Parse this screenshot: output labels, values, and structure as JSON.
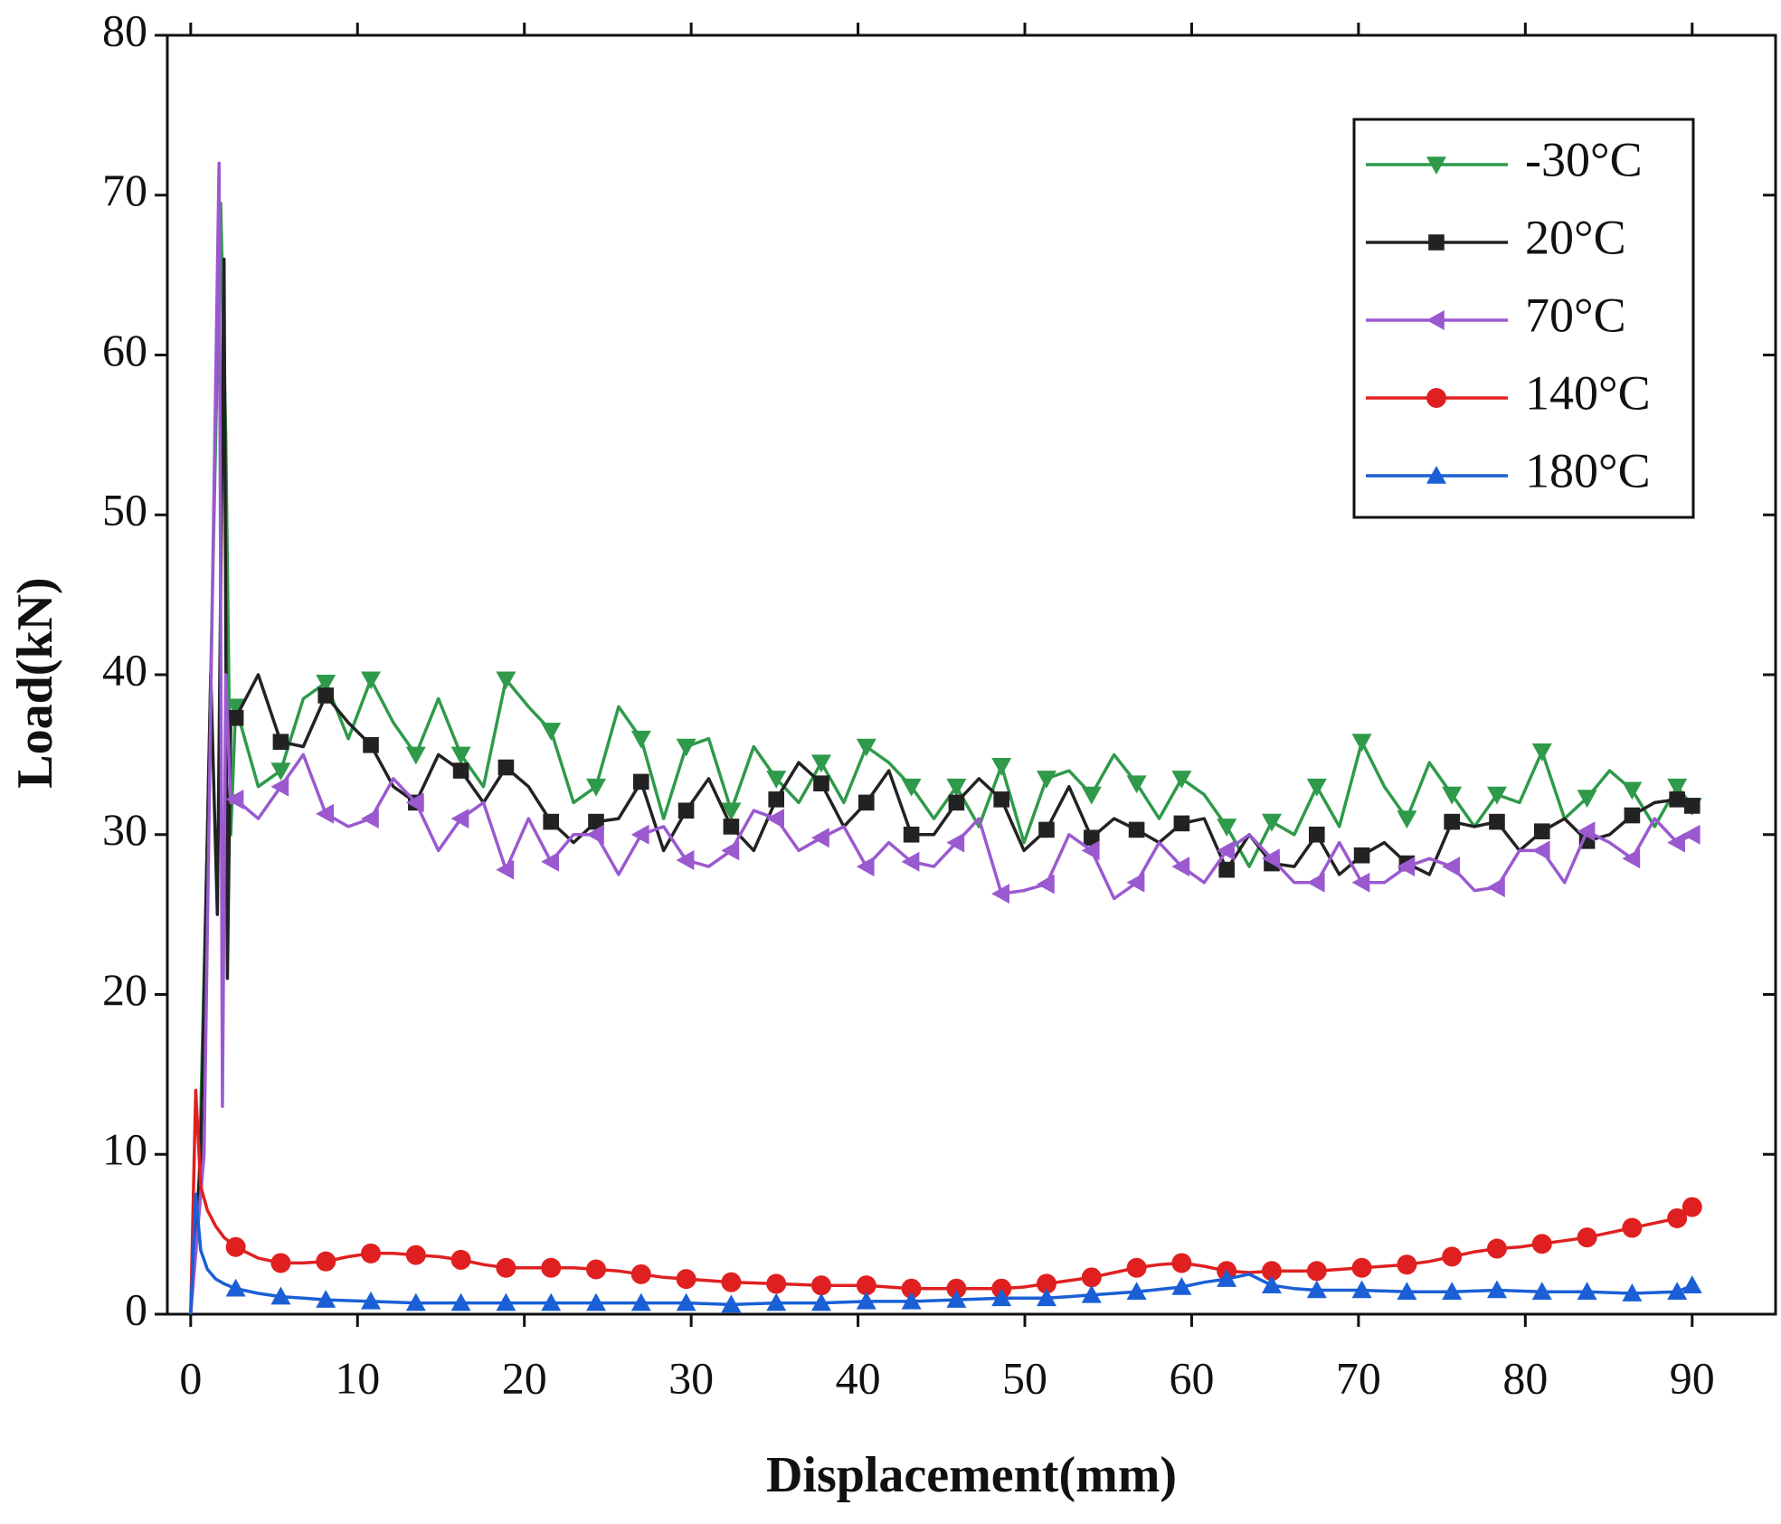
{
  "chart_data": {
    "type": "line",
    "x_label": "Displacement(mm)",
    "y_label": "Load(kN)",
    "xlim": [
      -1.4,
      95
    ],
    "ylim": [
      0,
      80
    ],
    "xticks": [
      0,
      10,
      20,
      30,
      40,
      50,
      60,
      70,
      80,
      90
    ],
    "yticks": [
      0,
      10,
      20,
      30,
      40,
      50,
      60,
      70,
      80
    ],
    "legend": "upper right",
    "series": [
      {
        "name": "-30°C",
        "color": "#2e9a4a",
        "marker": "triangle-down",
        "x": [
          0,
          0.5,
          1.0,
          1.5,
          1.8,
          2.1,
          2.4,
          2.7,
          4.05,
          5.4,
          6.75,
          8.1,
          9.45,
          10.8,
          12.15,
          13.5,
          14.85,
          16.2,
          17.55,
          18.9,
          20.25,
          21.6,
          22.95,
          24.3,
          25.65,
          27,
          28.35,
          29.7,
          31.05,
          32.4,
          33.75,
          35.1,
          36.45,
          37.8,
          39.15,
          40.5,
          41.85,
          43.2,
          44.55,
          45.9,
          47.25,
          48.6,
          49.95,
          51.3,
          52.65,
          54,
          55.35,
          56.7,
          58.05,
          59.4,
          60.75,
          62.1,
          63.45,
          64.8,
          66.15,
          67.5,
          68.85,
          70.2,
          71.55,
          72.9,
          74.25,
          75.6,
          76.95,
          78.3,
          79.65,
          81,
          82.35,
          83.7,
          85.05,
          86.4,
          87.75,
          89.1,
          90
        ],
        "values": [
          0,
          8,
          30,
          55,
          69.5,
          55,
          30,
          38,
          33,
          34,
          38.5,
          39.5,
          36,
          39.7,
          37,
          35,
          38.5,
          35,
          33,
          39.7,
          38,
          36.5,
          32,
          33,
          38,
          36,
          31,
          35.5,
          36,
          31.5,
          35.5,
          33.5,
          32,
          34.5,
          32,
          35.5,
          34.5,
          33,
          31,
          33,
          30.5,
          34.3,
          29.5,
          33.5,
          34,
          32.5,
          35,
          33.2,
          31,
          33.5,
          32.5,
          30.5,
          28,
          30.8,
          30,
          33,
          30.5,
          35.8,
          33,
          31,
          34.5,
          32.5,
          30.5,
          32.5,
          32,
          35.2,
          31,
          32.3,
          34,
          32.8,
          30.5,
          33,
          31.8
        ]
      },
      {
        "name": "20°C",
        "color": "#222222",
        "marker": "square",
        "x": [
          0,
          0.6,
          1.2,
          1.6,
          2.0,
          2.2,
          2.4,
          2.7,
          4.05,
          5.4,
          6.75,
          8.1,
          9.45,
          10.8,
          12.15,
          13.5,
          14.85,
          16.2,
          17.55,
          18.9,
          20.25,
          21.6,
          22.95,
          24.3,
          25.65,
          27,
          28.35,
          29.7,
          31.05,
          32.4,
          33.75,
          35.1,
          36.45,
          37.8,
          39.15,
          40.5,
          41.85,
          43.2,
          44.55,
          45.9,
          47.25,
          48.6,
          49.95,
          51.3,
          52.65,
          54,
          55.35,
          56.7,
          58.05,
          59.4,
          60.75,
          62.1,
          63.45,
          64.8,
          66.15,
          67.5,
          68.85,
          70.2,
          71.55,
          72.9,
          74.25,
          75.6,
          76.95,
          78.3,
          79.65,
          81,
          82.35,
          83.7,
          85.05,
          86.4,
          87.75,
          89.1,
          90
        ],
        "values": [
          0,
          10,
          40,
          25,
          66,
          21,
          37,
          37.3,
          40,
          35.8,
          35.5,
          38.7,
          37,
          35.6,
          33,
          32,
          35,
          34,
          32,
          34.2,
          33,
          30.8,
          29.5,
          30.8,
          31,
          33.3,
          29,
          31.5,
          33.5,
          30.5,
          29,
          32.2,
          34.5,
          33.2,
          30.5,
          32,
          34,
          30,
          30,
          32,
          33.5,
          32.2,
          29,
          30.3,
          33,
          29.8,
          31,
          30.3,
          29.5,
          30.7,
          31,
          27.8,
          30,
          28.2,
          28,
          30,
          27.5,
          28.7,
          29.5,
          28.2,
          27.5,
          30.8,
          30.5,
          30.8,
          29,
          30.2,
          31,
          29.6,
          30,
          31.2,
          32,
          32.2,
          31.8
        ]
      },
      {
        "name": "70°C",
        "color": "#9b59d0",
        "marker": "triangle-left",
        "x": [
          0,
          0.8,
          1.3,
          1.7,
          1.9,
          2.1,
          2.4,
          2.7,
          4.05,
          5.4,
          6.75,
          8.1,
          9.45,
          10.8,
          12.15,
          13.5,
          14.85,
          16.2,
          17.55,
          18.9,
          20.25,
          21.6,
          22.95,
          24.3,
          25.65,
          27,
          28.35,
          29.7,
          31.05,
          32.4,
          33.75,
          35.1,
          36.45,
          37.8,
          39.15,
          40.5,
          41.85,
          43.2,
          44.55,
          45.9,
          47.25,
          48.6,
          49.95,
          51.3,
          52.65,
          54,
          55.35,
          56.7,
          58.05,
          59.4,
          60.75,
          62.1,
          63.45,
          64.8,
          66.15,
          67.5,
          68.85,
          70.2,
          71.55,
          72.9,
          74.25,
          75.6,
          76.95,
          78.3,
          79.65,
          81,
          82.35,
          83.7,
          85.05,
          86.4,
          87.75,
          89.1,
          90
        ],
        "values": [
          0,
          10,
          45,
          72,
          13,
          40,
          32,
          32.2,
          31,
          33,
          35,
          31.3,
          30.5,
          31,
          33.5,
          32,
          29,
          31,
          32,
          27.8,
          31,
          28.3,
          30,
          30,
          27.5,
          30,
          30.5,
          28.4,
          28,
          29,
          31.5,
          31,
          29,
          29.8,
          30.5,
          28,
          29.5,
          28.3,
          28,
          29.5,
          31,
          26.3,
          26.5,
          26.9,
          30,
          29,
          26,
          27,
          29.5,
          28,
          27,
          29,
          30,
          28.5,
          27,
          27,
          29.5,
          27,
          27,
          28,
          28.5,
          28,
          26.5,
          26.7,
          29,
          29,
          27,
          30.2,
          29.5,
          28.5,
          31,
          29.5,
          30
        ]
      },
      {
        "name": "140°C",
        "color": "#e02020",
        "marker": "circle",
        "x": [
          0,
          0.3,
          0.6,
          1.0,
          1.5,
          2.0,
          2.7,
          4.05,
          5.4,
          6.75,
          8.1,
          9.45,
          10.8,
          12.15,
          13.5,
          14.85,
          16.2,
          17.55,
          18.9,
          20.25,
          21.6,
          22.95,
          24.3,
          25.65,
          27,
          28.35,
          29.7,
          31.05,
          32.4,
          33.75,
          35.1,
          36.45,
          37.8,
          39.15,
          40.5,
          41.85,
          43.2,
          44.55,
          45.9,
          47.25,
          48.6,
          49.95,
          51.3,
          52.65,
          54,
          55.35,
          56.7,
          58.05,
          59.4,
          60.75,
          62.1,
          63.45,
          64.8,
          66.15,
          67.5,
          68.85,
          70.2,
          71.55,
          72.9,
          74.25,
          75.6,
          76.95,
          78.3,
          79.65,
          81,
          82.35,
          83.7,
          85.05,
          86.4,
          87.75,
          89.1,
          90
        ],
        "values": [
          0,
          14,
          8,
          6.5,
          5.5,
          4.8,
          4.2,
          3.5,
          3.2,
          3.2,
          3.3,
          3.6,
          3.8,
          3.8,
          3.7,
          3.6,
          3.4,
          3.1,
          2.9,
          2.9,
          2.9,
          2.9,
          2.8,
          2.7,
          2.5,
          2.3,
          2.2,
          2.1,
          2.0,
          1.95,
          1.9,
          1.85,
          1.8,
          1.8,
          1.8,
          1.7,
          1.6,
          1.6,
          1.6,
          1.6,
          1.6,
          1.7,
          1.9,
          2.1,
          2.3,
          2.6,
          2.9,
          3.1,
          3.2,
          3.0,
          2.7,
          2.6,
          2.7,
          2.7,
          2.7,
          2.8,
          2.9,
          3.0,
          3.1,
          3.3,
          3.6,
          3.9,
          4.1,
          4.2,
          4.4,
          4.6,
          4.8,
          5.1,
          5.4,
          5.7,
          6.0,
          6.7
        ]
      },
      {
        "name": "180°C",
        "color": "#1a5fd6",
        "marker": "triangle-up",
        "x": [
          0,
          0.3,
          0.6,
          1.0,
          1.5,
          2.0,
          2.7,
          4.05,
          5.4,
          6.75,
          8.1,
          9.45,
          10.8,
          12.15,
          13.5,
          14.85,
          16.2,
          17.55,
          18.9,
          20.25,
          21.6,
          22.95,
          24.3,
          25.65,
          27,
          28.35,
          29.7,
          31.05,
          32.4,
          33.75,
          35.1,
          36.45,
          37.8,
          39.15,
          40.5,
          41.85,
          43.2,
          44.55,
          45.9,
          47.25,
          48.6,
          49.95,
          51.3,
          52.65,
          54,
          55.35,
          56.7,
          58.05,
          59.4,
          60.75,
          62.1,
          63.45,
          64.8,
          66.15,
          67.5,
          68.85,
          70.2,
          71.55,
          72.9,
          74.25,
          75.6,
          76.95,
          78.3,
          79.65,
          81,
          82.35,
          83.7,
          85.05,
          86.4,
          87.75,
          89.1,
          90
        ],
        "values": [
          0,
          7.5,
          4,
          2.8,
          2.2,
          1.9,
          1.6,
          1.3,
          1.1,
          1.0,
          0.9,
          0.85,
          0.8,
          0.75,
          0.7,
          0.7,
          0.7,
          0.7,
          0.7,
          0.7,
          0.7,
          0.7,
          0.7,
          0.7,
          0.7,
          0.7,
          0.7,
          0.65,
          0.6,
          0.65,
          0.7,
          0.7,
          0.7,
          0.75,
          0.8,
          0.8,
          0.8,
          0.85,
          0.9,
          0.95,
          1.0,
          1.0,
          1.0,
          1.1,
          1.2,
          1.3,
          1.4,
          1.55,
          1.7,
          2.0,
          2.2,
          2.5,
          1.8,
          1.6,
          1.5,
          1.5,
          1.5,
          1.45,
          1.4,
          1.4,
          1.4,
          1.45,
          1.5,
          1.45,
          1.4,
          1.4,
          1.4,
          1.35,
          1.3,
          1.35,
          1.4,
          1.8
        ]
      }
    ]
  }
}
